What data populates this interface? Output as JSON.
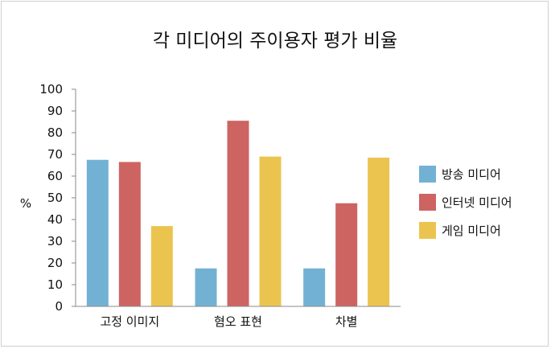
{
  "chart_data": {
    "type": "bar",
    "title": "각 미디어의 주이용자 평가 비율",
    "ylabel": "%",
    "xlabel": "",
    "ylim": [
      0,
      100
    ],
    "yticks": [
      0,
      10,
      20,
      30,
      40,
      50,
      60,
      70,
      80,
      90,
      100
    ],
    "categories": [
      "고정 이미지",
      "혐오 표현",
      "차별"
    ],
    "series": [
      {
        "name": "방송 미디어",
        "color": "#72b1d3",
        "values": [
          67.5,
          17.5,
          17.5
        ]
      },
      {
        "name": "인터넷 미디어",
        "color": "#cd6461",
        "values": [
          66.5,
          85.5,
          47.5
        ]
      },
      {
        "name": "게임 미디어",
        "color": "#ebc450",
        "values": [
          37,
          69,
          68.5
        ]
      }
    ],
    "grid": false,
    "legend": "right"
  }
}
